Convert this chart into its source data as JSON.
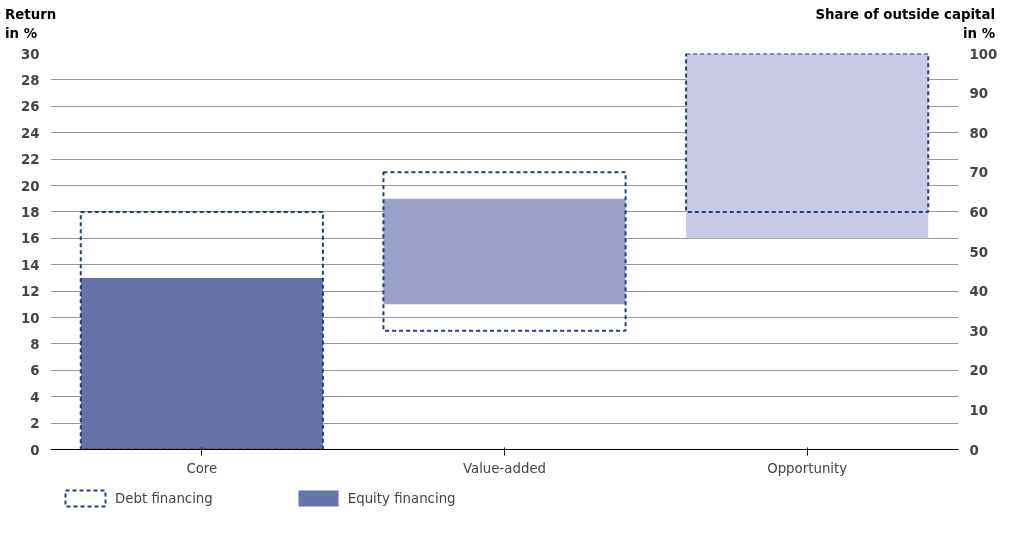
{
  "chart_data": {
    "type": "bar",
    "ylabel": "Return in %",
    "y2label": "Share of outside capital in %",
    "categories": [
      "Core",
      "Value-added",
      "Opportunity"
    ],
    "series": [
      {
        "name": "Equity financing",
        "colors": [
          "#6673a8",
          "#9aa0c8",
          "#c8cbe3"
        ],
        "values": [
          13,
          8,
          14
        ],
        "base": [
          0,
          11,
          16
        ]
      },
      {
        "name": "Debt financing",
        "color": "#1f3f7f",
        "axis": "y2",
        "line_style": "dashed",
        "values": [
          60,
          40,
          40
        ],
        "base": [
          0,
          30,
          60
        ]
      }
    ],
    "ylim": [
      0,
      30
    ],
    "yticks": [
      0,
      2,
      4,
      6,
      8,
      10,
      12,
      14,
      16,
      18,
      20,
      22,
      24,
      26,
      28,
      30
    ],
    "y2lim": [
      0,
      100
    ],
    "y2ticks": [
      0,
      10,
      20,
      30,
      40,
      50,
      60,
      70,
      80,
      90,
      100
    ],
    "grid": "y",
    "legend": "bottom"
  }
}
